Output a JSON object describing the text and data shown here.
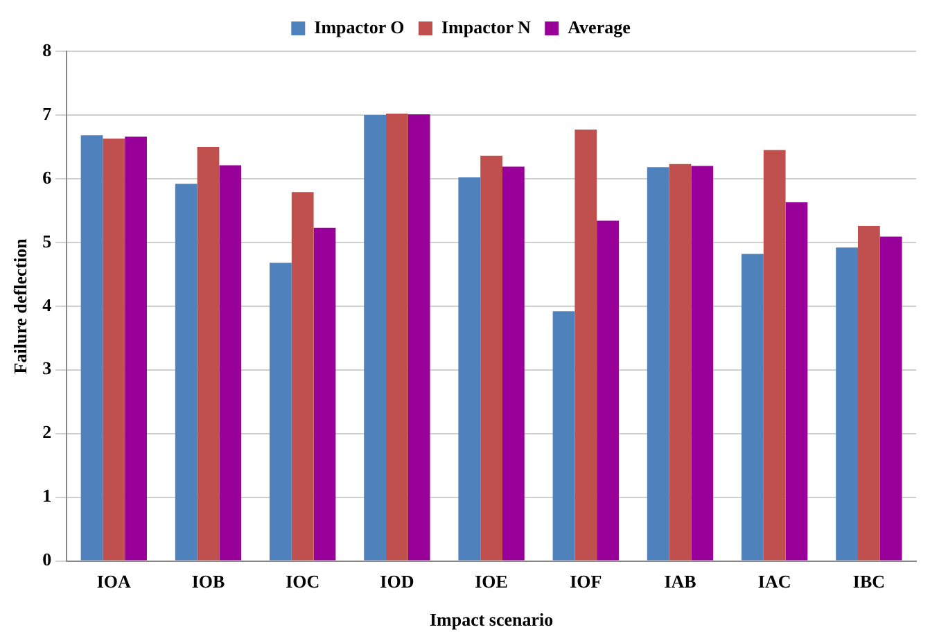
{
  "chart_data": {
    "type": "bar",
    "xlabel": "Impact scenario",
    "ylabel": "Failure deflection",
    "categories": [
      "IOA",
      "IOB",
      "IOC",
      "IOD",
      "IOE",
      "IOF",
      "IAB",
      "IAC",
      "IBC"
    ],
    "series": [
      {
        "name": "Impactor O",
        "color": "#4f81bd",
        "values": [
          6.68,
          5.92,
          4.68,
          7.0,
          6.02,
          3.92,
          6.18,
          4.82,
          4.92
        ]
      },
      {
        "name": "Impactor N",
        "color": "#c0504d",
        "values": [
          6.63,
          6.5,
          5.79,
          7.02,
          6.36,
          6.77,
          6.23,
          6.45,
          5.26
        ]
      },
      {
        "name": "Average",
        "color": "#990099",
        "values": [
          6.66,
          6.21,
          5.23,
          7.01,
          6.19,
          5.34,
          6.2,
          5.63,
          5.09
        ]
      }
    ],
    "ylim": [
      0,
      8
    ],
    "yticks": [
      0,
      1,
      2,
      3,
      4,
      5,
      6,
      7,
      8
    ],
    "grid": "y",
    "legend": "top"
  }
}
